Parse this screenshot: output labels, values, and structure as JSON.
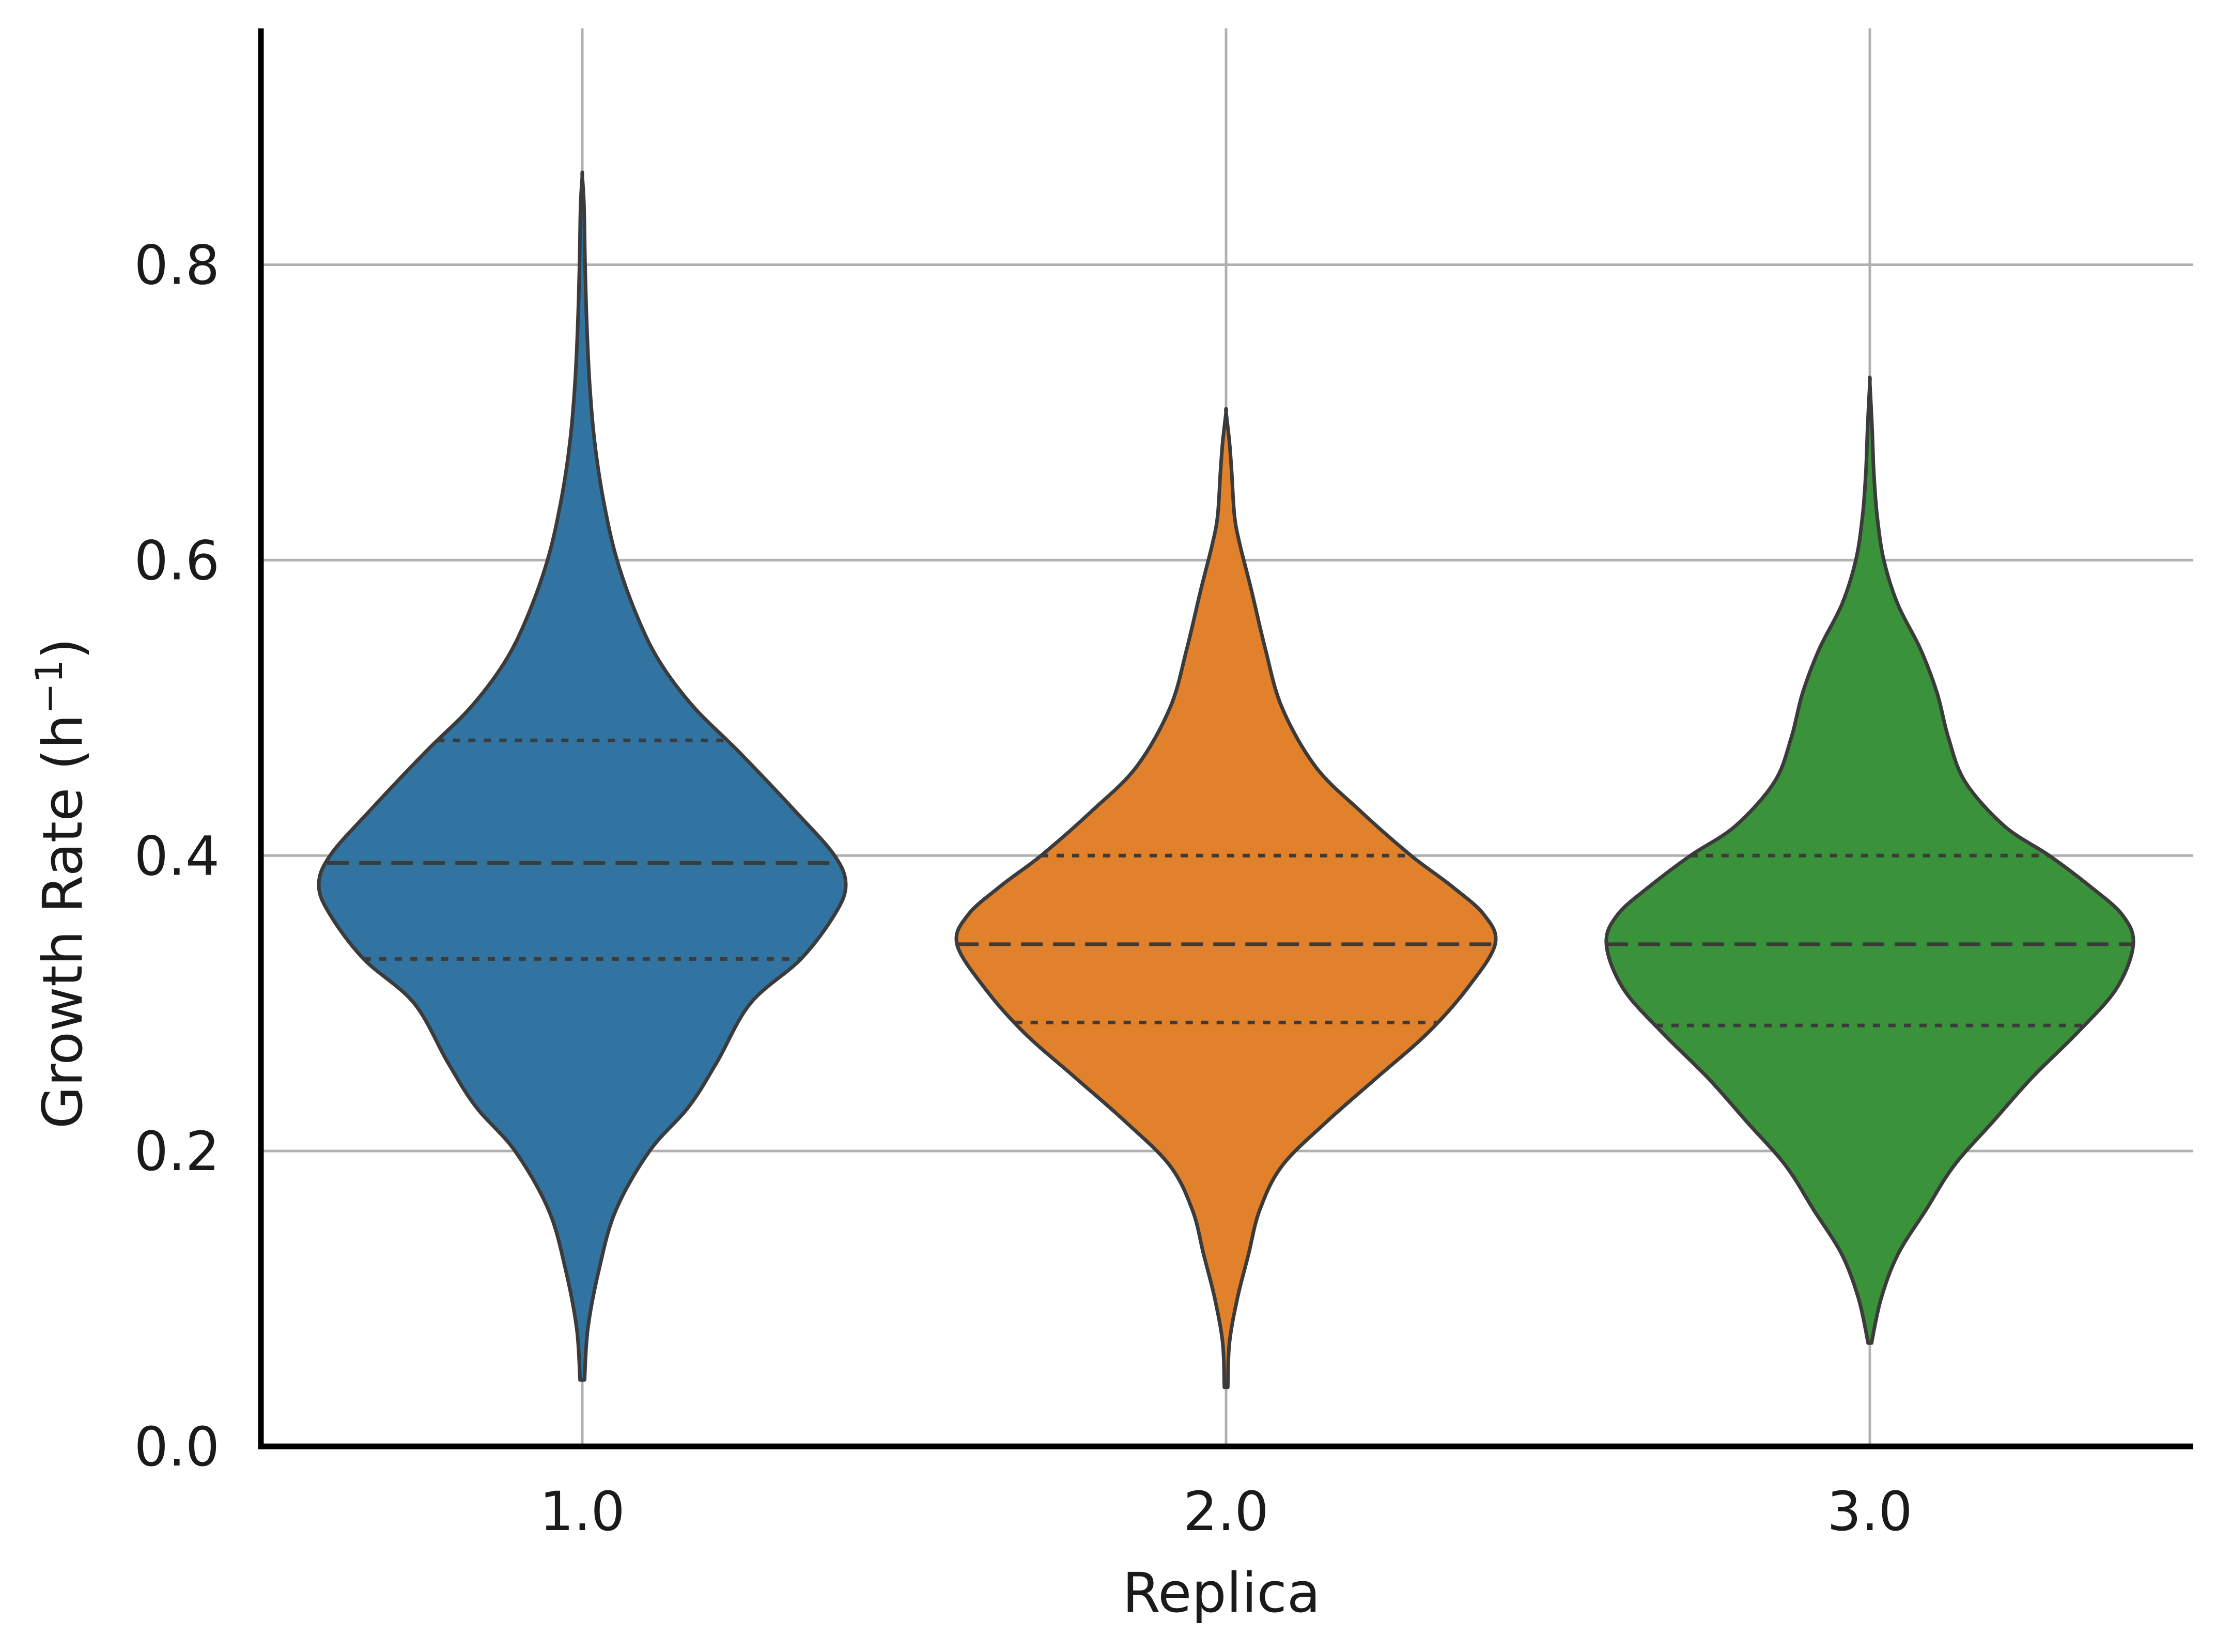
{
  "chart_data": {
    "type": "violin",
    "xlabel": "Replica",
    "ylabel_main": "Growth Rate (h",
    "ylabel_sup": "−1",
    "ylabel_close": ")",
    "ylim": [
      0.0,
      0.96
    ],
    "yticks": [
      0.0,
      0.2,
      0.4,
      0.6,
      0.8
    ],
    "ytick_labels": [
      "0.0",
      "0.2",
      "0.4",
      "0.6",
      "0.8"
    ],
    "categories": [
      "1.0",
      "2.0",
      "3.0"
    ],
    "grid": true,
    "series": [
      {
        "category": "1.0",
        "color": "#3274a1",
        "min": 0.045,
        "max": 0.86,
        "q1": 0.33,
        "median": 0.395,
        "q3": 0.478,
        "profile": [
          [
            0.045,
            0.004
          ],
          [
            0.08,
            0.01
          ],
          [
            0.12,
            0.03
          ],
          [
            0.16,
            0.06
          ],
          [
            0.2,
            0.12
          ],
          [
            0.23,
            0.19
          ],
          [
            0.26,
            0.24
          ],
          [
            0.3,
            0.3
          ],
          [
            0.33,
            0.39
          ],
          [
            0.36,
            0.45
          ],
          [
            0.38,
            0.47
          ],
          [
            0.4,
            0.45
          ],
          [
            0.43,
            0.38
          ],
          [
            0.47,
            0.28
          ],
          [
            0.5,
            0.2
          ],
          [
            0.53,
            0.14
          ],
          [
            0.56,
            0.1
          ],
          [
            0.6,
            0.062
          ],
          [
            0.64,
            0.038
          ],
          [
            0.68,
            0.022
          ],
          [
            0.72,
            0.013
          ],
          [
            0.76,
            0.008
          ],
          [
            0.8,
            0.005
          ],
          [
            0.84,
            0.003
          ],
          [
            0.86,
            0.0
          ]
        ]
      },
      {
        "category": "2.0",
        "color": "#e1812c",
        "min": 0.04,
        "max": 0.7,
        "q1": 0.287,
        "median": 0.34,
        "q3": 0.4,
        "profile": [
          [
            0.04,
            0.003
          ],
          [
            0.07,
            0.006
          ],
          [
            0.1,
            0.02
          ],
          [
            0.13,
            0.04
          ],
          [
            0.16,
            0.06
          ],
          [
            0.19,
            0.1
          ],
          [
            0.22,
            0.18
          ],
          [
            0.25,
            0.27
          ],
          [
            0.28,
            0.36
          ],
          [
            0.31,
            0.43
          ],
          [
            0.34,
            0.48
          ],
          [
            0.36,
            0.46
          ],
          [
            0.38,
            0.4
          ],
          [
            0.4,
            0.33
          ],
          [
            0.43,
            0.24
          ],
          [
            0.46,
            0.16
          ],
          [
            0.5,
            0.1
          ],
          [
            0.54,
            0.07
          ],
          [
            0.58,
            0.045
          ],
          [
            0.61,
            0.025
          ],
          [
            0.63,
            0.015
          ],
          [
            0.66,
            0.01
          ],
          [
            0.68,
            0.006
          ],
          [
            0.7,
            0.0
          ]
        ]
      },
      {
        "category": "3.0",
        "color": "#3a923a",
        "min": 0.07,
        "max": 0.72,
        "q1": 0.285,
        "median": 0.34,
        "q3": 0.4,
        "profile": [
          [
            0.07,
            0.003
          ],
          [
            0.1,
            0.02
          ],
          [
            0.13,
            0.05
          ],
          [
            0.16,
            0.1
          ],
          [
            0.19,
            0.15
          ],
          [
            0.22,
            0.22
          ],
          [
            0.25,
            0.29
          ],
          [
            0.28,
            0.37
          ],
          [
            0.31,
            0.44
          ],
          [
            0.34,
            0.47
          ],
          [
            0.36,
            0.45
          ],
          [
            0.38,
            0.39
          ],
          [
            0.4,
            0.32
          ],
          [
            0.42,
            0.24
          ],
          [
            0.45,
            0.17
          ],
          [
            0.48,
            0.14
          ],
          [
            0.51,
            0.12
          ],
          [
            0.54,
            0.09
          ],
          [
            0.57,
            0.05
          ],
          [
            0.6,
            0.025
          ],
          [
            0.63,
            0.013
          ],
          [
            0.66,
            0.007
          ],
          [
            0.69,
            0.004
          ],
          [
            0.72,
            0.0
          ]
        ]
      }
    ]
  }
}
